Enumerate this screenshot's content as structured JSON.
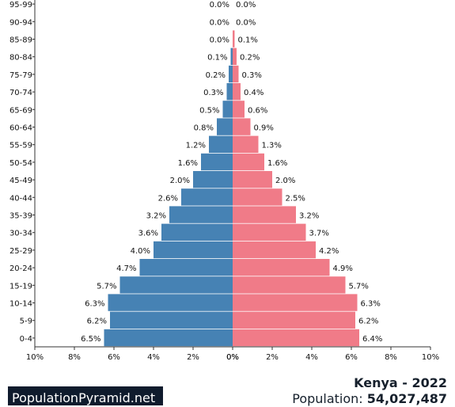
{
  "chart_data": {
    "type": "bar",
    "title": "Kenya - 2022",
    "subtitle_label": "Population:",
    "subtitle_value": "54,027,487",
    "categories": [
      "95-99",
      "90-94",
      "85-89",
      "80-84",
      "75-79",
      "70-74",
      "65-69",
      "60-64",
      "55-59",
      "50-54",
      "45-49",
      "40-44",
      "35-39",
      "30-34",
      "25-29",
      "20-24",
      "15-19",
      "10-14",
      "5-9",
      "0-4"
    ],
    "series": [
      {
        "values": [
          0.0,
          0.0,
          0.0,
          0.1,
          0.2,
          0.3,
          0.5,
          0.8,
          1.2,
          1.6,
          2.0,
          2.6,
          3.2,
          3.6,
          4.0,
          4.7,
          5.7,
          6.3,
          6.2,
          6.5
        ],
        "color": "#4682b4",
        "side": "left"
      },
      {
        "values": [
          0.0,
          0.0,
          0.1,
          0.2,
          0.3,
          0.4,
          0.6,
          0.9,
          1.3,
          1.6,
          2.0,
          2.5,
          3.2,
          3.7,
          4.2,
          4.9,
          5.7,
          6.3,
          6.2,
          6.4
        ],
        "color": "#f07b88",
        "side": "right"
      }
    ],
    "value_labels": {
      "left": [
        "0.0%",
        "0.0%",
        "0.0%",
        "0.1%",
        "0.2%",
        "0.3%",
        "0.5%",
        "0.8%",
        "1.2%",
        "1.6%",
        "2.0%",
        "2.6%",
        "3.2%",
        "3.6%",
        "4.0%",
        "4.7%",
        "5.7%",
        "6.3%",
        "6.2%",
        "6.5%"
      ],
      "right": [
        "0.0%",
        "0.0%",
        "0.1%",
        "0.2%",
        "0.3%",
        "0.4%",
        "0.6%",
        "0.9%",
        "1.3%",
        "1.6%",
        "2.0%",
        "2.5%",
        "3.2%",
        "3.7%",
        "4.2%",
        "4.9%",
        "5.7%",
        "6.3%",
        "6.2%",
        "6.4%"
      ]
    },
    "x_range": [
      0,
      10
    ],
    "x_ticks_left": [
      "10%",
      "8%",
      "6%",
      "4%",
      "2%",
      "0%"
    ],
    "x_ticks_right": [
      "0%",
      "2%",
      "4%",
      "6%",
      "8%",
      "10%"
    ],
    "grid": false
  },
  "brand": "PopulationPyramid.net"
}
